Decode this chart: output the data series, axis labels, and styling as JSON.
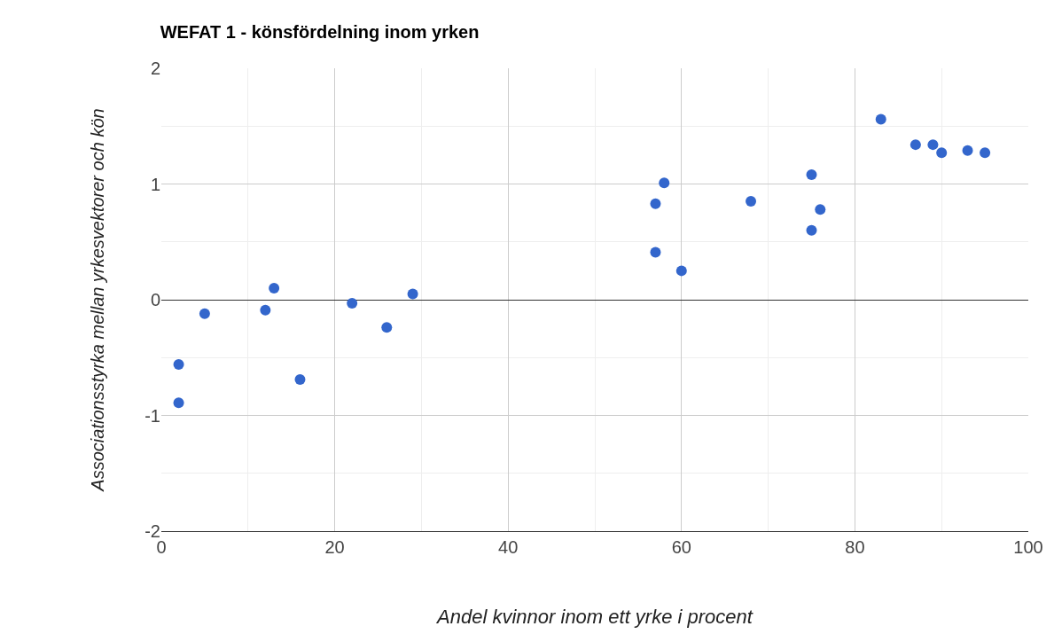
{
  "chart_data": {
    "type": "scatter",
    "title": "WEFAT 1 - könsfördelning inom yrken",
    "xlabel": "Andel kvinnor inom ett yrke i procent",
    "ylabel": "Associationsstyrka mellan yrkesvektorer och kön",
    "x": [
      2,
      2,
      5,
      12,
      13,
      16,
      22,
      26,
      29,
      57,
      57,
      58,
      60,
      68,
      75,
      75,
      76,
      83,
      87,
      89,
      90,
      93,
      95
    ],
    "series": [
      {
        "color": "#3366cc",
        "values": [
          -0.56,
          -0.89,
          -0.12,
          -0.09,
          0.1,
          -0.69,
          -0.03,
          -0.24,
          0.05,
          0.41,
          0.83,
          1.01,
          0.25,
          0.85,
          1.08,
          0.6,
          0.78,
          1.56,
          1.34,
          1.34,
          1.27,
          1.29,
          1.27
        ]
      }
    ],
    "xlim": [
      0,
      100
    ],
    "xticks": [
      0,
      20,
      40,
      60,
      80,
      100
    ],
    "ylim": [
      -2,
      2
    ],
    "yticks": [
      -2,
      -1,
      0,
      1,
      2
    ],
    "grid": true,
    "marker": "circle"
  }
}
